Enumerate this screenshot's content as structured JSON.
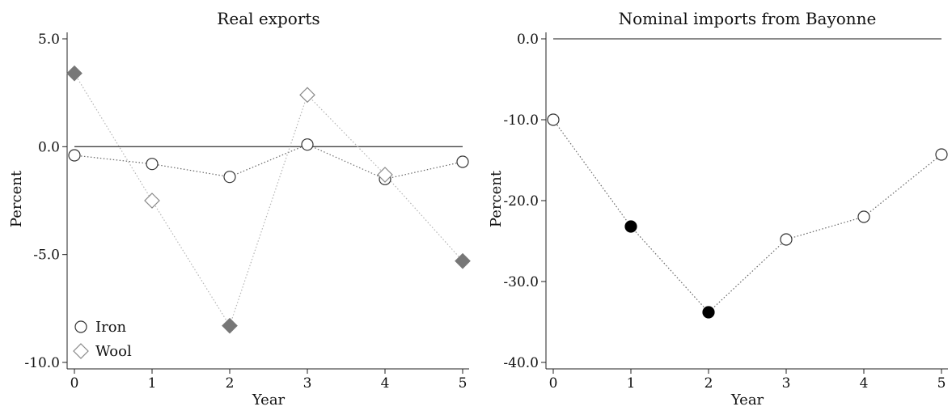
{
  "chart_data": [
    {
      "type": "scatter",
      "title": "Real exports",
      "xlabel": "Year",
      "ylabel": "Percent",
      "x": [
        0,
        1,
        2,
        3,
        4,
        5
      ],
      "xticks": [
        0,
        1,
        2,
        3,
        4,
        5
      ],
      "xtick_labels": [
        "0",
        "1",
        "2",
        "3",
        "4",
        "5"
      ],
      "xlim": [
        0,
        5
      ],
      "ylim": [
        -10,
        5
      ],
      "yticks": [
        5,
        0,
        -5,
        -10
      ],
      "ytick_labels": [
        "5.0",
        "0.0",
        "-5.0",
        "-10.0"
      ],
      "reference_line": 0,
      "grid": false,
      "legend_position": "bottom-left",
      "series": [
        {
          "name": "Iron",
          "marker": "circle",
          "values": [
            -0.4,
            -0.8,
            -1.4,
            0.1,
            -1.5,
            -0.7
          ],
          "significant": [
            false,
            false,
            false,
            false,
            false,
            false
          ],
          "color": "#333333"
        },
        {
          "name": "Wool",
          "marker": "diamond",
          "values": [
            3.4,
            -2.5,
            -8.3,
            2.4,
            -1.3,
            -5.3
          ],
          "significant": [
            true,
            false,
            true,
            false,
            false,
            true
          ],
          "color": "#888888",
          "fill_color": "#777777"
        }
      ]
    },
    {
      "type": "scatter",
      "title": "Nominal imports from Bayonne",
      "xlabel": "Year",
      "ylabel": "Percent",
      "x": [
        0,
        1,
        2,
        3,
        4,
        5
      ],
      "xticks": [
        0,
        1,
        2,
        3,
        4,
        5
      ],
      "xtick_labels": [
        "0",
        "1",
        "2",
        "3",
        "4",
        "5"
      ],
      "xlim": [
        0,
        5
      ],
      "ylim": [
        -40,
        0
      ],
      "yticks": [
        0,
        -10,
        -20,
        -30,
        -40
      ],
      "ytick_labels": [
        "0.0",
        "-10.0",
        "-20.0",
        "-30.0",
        "-40.0"
      ],
      "reference_line": 0,
      "grid": false,
      "series": [
        {
          "marker": "circle",
          "values": [
            -10.0,
            -23.2,
            -33.8,
            -24.8,
            -22.0,
            -14.3
          ],
          "significant": [
            false,
            true,
            true,
            false,
            false,
            false
          ],
          "color": "#333333",
          "fill_color": "#000000"
        }
      ]
    }
  ]
}
